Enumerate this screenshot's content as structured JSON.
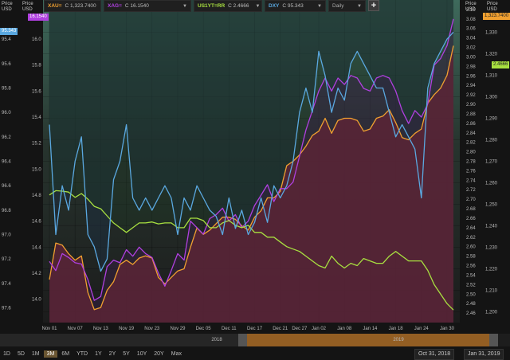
{
  "toolbar": {
    "items": [
      {
        "symbol": "XAU=",
        "value": "C 1,323.7400",
        "color": "#f0a030"
      },
      {
        "symbol": "XAG=",
        "value": "C 16.1540",
        "color": "#b040e0"
      },
      {
        "symbol": "US1YT=RR",
        "value": "C 2.4666",
        "color": "#a8e040"
      },
      {
        "symbol": "DXY",
        "value": "C 95.343",
        "color": "#5aa8e0"
      }
    ],
    "interval": "Daily",
    "add_symbol": "+"
  },
  "axes": {
    "left_outer_units": [
      "Price",
      "USD"
    ],
    "left_inner_units": [
      "Price",
      "USD"
    ],
    "right_inner_units": [
      "Price",
      "USD"
    ],
    "right_outer_units": [
      "Price",
      "USD"
    ]
  },
  "last_value_tags": {
    "xag": "16.1540",
    "dxy": "95.343",
    "xau": "1,323.7400",
    "us1y": "2.4666"
  },
  "navigator": {
    "year_left": "2018",
    "year_right": "2019"
  },
  "ranges": [
    "1D",
    "5D",
    "1M",
    "3M",
    "6M",
    "YTD",
    "1Y",
    "2Y",
    "5Y",
    "10Y",
    "20Y",
    "Max"
  ],
  "active_range": "3M",
  "date_from": "Oct 31, 2018",
  "date_to": "Jan 31, 2019",
  "chart_data": {
    "type": "line",
    "x": [
      "Nov 01",
      "Nov 02",
      "Nov 05",
      "Nov 06",
      "Nov 07",
      "Nov 08",
      "Nov 09",
      "Nov 12",
      "Nov 13",
      "Nov 14",
      "Nov 15",
      "Nov 16",
      "Nov 19",
      "Nov 20",
      "Nov 21",
      "Nov 22",
      "Nov 23",
      "Nov 26",
      "Nov 27",
      "Nov 28",
      "Nov 29",
      "Nov 30",
      "Dec 03",
      "Dec 04",
      "Dec 05",
      "Dec 06",
      "Dec 07",
      "Dec 10",
      "Dec 11",
      "Dec 12",
      "Dec 13",
      "Dec 14",
      "Dec 17",
      "Dec 18",
      "Dec 19",
      "Dec 20",
      "Dec 21",
      "Dec 24",
      "Dec 26",
      "Dec 27",
      "Dec 28",
      "Dec 31",
      "Jan 02",
      "Jan 03",
      "Jan 04",
      "Jan 07",
      "Jan 08",
      "Jan 09",
      "Jan 10",
      "Jan 11",
      "Jan 14",
      "Jan 15",
      "Jan 16",
      "Jan 17",
      "Jan 18",
      "Jan 21",
      "Jan 22",
      "Jan 23",
      "Jan 24",
      "Jan 25",
      "Jan 28",
      "Jan 29",
      "Jan 30",
      "Jan 31"
    ],
    "x_tick_labels": [
      "Nov 01",
      "Nov 07",
      "Nov 13",
      "Nov 19",
      "Nov 23",
      "Nov 29",
      "Dec 05",
      "Dec 11",
      "Dec 17",
      "Dec 21",
      "Dec 27",
      "Jan 02",
      "Jan 08",
      "Jan 14",
      "Jan 18",
      "Jan 24",
      "Jan 30"
    ],
    "grid": true,
    "series": [
      {
        "name": "XAU=",
        "axis": "right_outer",
        "color": "#f0a030",
        "fill": "#5a2436",
        "values": [
          1215,
          1232,
          1231,
          1227,
          1224,
          1226,
          1209,
          1201,
          1202,
          1210,
          1214,
          1222,
          1224,
          1222,
          1225,
          1226,
          1225,
          1216,
          1213,
          1216,
          1219,
          1220,
          1230,
          1239,
          1236,
          1238,
          1241,
          1244,
          1244,
          1243,
          1240,
          1238,
          1244,
          1247,
          1253,
          1253,
          1256,
          1268,
          1270,
          1273,
          1277,
          1282,
          1284,
          1290,
          1283,
          1289,
          1290,
          1290,
          1289,
          1284,
          1285,
          1290,
          1291,
          1294,
          1288,
          1281,
          1280,
          1283,
          1285,
          1297,
          1301,
          1304,
          1310,
          1323.74
        ],
        "ylim": [
          1195,
          1345
        ]
      },
      {
        "name": "XAG=",
        "axis": "left_inner",
        "color": "#b040e0",
        "fill": "#3a1e46",
        "values": [
          14.29,
          14.22,
          14.35,
          14.32,
          14.28,
          14.27,
          14.15,
          13.99,
          14.02,
          14.25,
          14.3,
          14.28,
          14.38,
          14.33,
          14.4,
          14.35,
          14.32,
          14.2,
          14.1,
          14.22,
          14.35,
          14.3,
          14.6,
          14.55,
          14.5,
          14.62,
          14.65,
          14.7,
          14.6,
          14.65,
          14.55,
          14.6,
          14.72,
          14.8,
          14.88,
          14.75,
          14.85,
          14.85,
          14.9,
          15.1,
          15.3,
          15.45,
          15.6,
          15.7,
          15.6,
          15.7,
          15.65,
          15.72,
          15.7,
          15.62,
          15.6,
          15.7,
          15.72,
          15.7,
          15.6,
          15.45,
          15.35,
          15.45,
          15.4,
          15.5,
          15.8,
          15.85,
          15.95,
          16.154
        ],
        "ylim": [
          13.82,
          16.3
        ]
      },
      {
        "name": "US1YT=RR",
        "axis": "right_inner",
        "color": "#a8e040",
        "fill": "#1e3622",
        "values": [
          2.709,
          2.718,
          2.717,
          2.715,
          2.704,
          2.712,
          2.7,
          2.685,
          2.68,
          2.665,
          2.65,
          2.64,
          2.63,
          2.64,
          2.65,
          2.65,
          2.652,
          2.648,
          2.65,
          2.65,
          2.64,
          2.64,
          2.66,
          2.66,
          2.655,
          2.64,
          2.64,
          2.65,
          2.655,
          2.645,
          2.64,
          2.645,
          2.63,
          2.63,
          2.62,
          2.62,
          2.61,
          2.6,
          2.595,
          2.59,
          2.58,
          2.57,
          2.56,
          2.555,
          2.58,
          2.565,
          2.555,
          2.565,
          2.56,
          2.575,
          2.57,
          2.565,
          2.565,
          2.58,
          2.59,
          2.58,
          2.57,
          2.57,
          2.57,
          2.55,
          2.52,
          2.5,
          2.48,
          2.4666
        ],
        "ylim": [
          2.44,
          3.12
        ]
      },
      {
        "name": "DXY",
        "axis": "left_outer",
        "color": "#5aa8e0",
        "fill": "#1e2e3e",
        "values": [
          96.1,
          97.0,
          96.6,
          96.8,
          96.4,
          96.2,
          97.0,
          97.1,
          97.3,
          97.2,
          96.55,
          96.4,
          96.1,
          96.7,
          96.8,
          96.7,
          96.8,
          96.7,
          96.6,
          96.7,
          97.0,
          96.7,
          96.8,
          96.6,
          96.7,
          96.8,
          96.85,
          97.0,
          96.7,
          96.95,
          96.8,
          97.0,
          96.9,
          96.7,
          96.9,
          96.6,
          96.7,
          96.6,
          96.4,
          96.0,
          95.8,
          96.0,
          95.5,
          95.7,
          96.0,
          95.8,
          95.9,
          95.6,
          95.5,
          95.6,
          95.7,
          95.8,
          95.8,
          96.0,
          96.2,
          96.1,
          96.2,
          96.3,
          96.7,
          95.8,
          95.6,
          95.5,
          95.4,
          95.343
        ],
        "ylim": [
          95.08,
          97.72
        ]
      }
    ],
    "axes": {
      "left_outer_ticks": [
        95.4,
        95.6,
        95.8,
        96.0,
        96.2,
        96.4,
        96.6,
        96.8,
        97.0,
        97.2,
        97.4,
        97.6
      ],
      "left_inner_ticks": [
        14.0,
        14.2,
        14.4,
        14.6,
        14.8,
        15.0,
        15.2,
        15.4,
        15.6,
        15.8,
        16.0
      ],
      "right_outer_ticks": [
        1200,
        1210,
        1220,
        1230,
        1240,
        1250,
        1260,
        1270,
        1280,
        1290,
        1300,
        1310,
        1320,
        1330
      ],
      "right_inner_ticks": [
        2.46,
        2.48,
        2.5,
        2.52,
        2.54,
        2.56,
        2.58,
        2.6,
        2.62,
        2.64,
        2.66,
        2.68,
        2.7,
        2.72,
        2.74,
        2.76,
        2.78,
        2.8,
        2.82,
        2.84,
        2.86,
        2.88,
        2.9,
        2.92,
        2.94,
        2.96,
        2.98,
        3.0,
        3.02,
        3.04,
        3.06,
        3.08,
        3.1
      ],
      "left_outer_reversed": true
    }
  }
}
